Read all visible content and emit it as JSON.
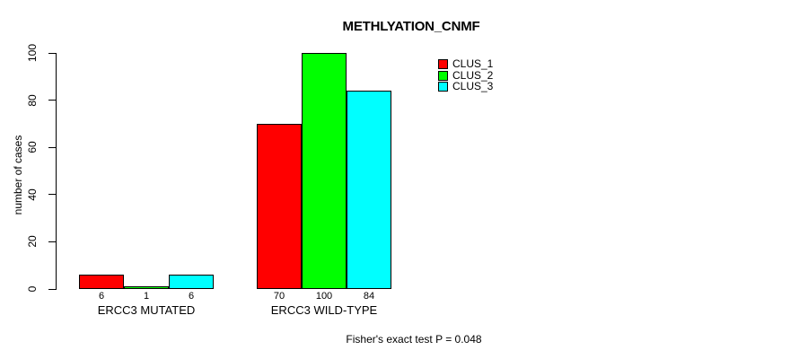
{
  "chart_data": {
    "type": "bar",
    "title": "METHLYATION_CNMF",
    "ylabel": "number of cases",
    "xlabel": "",
    "categories": [
      "ERCC3 MUTATED",
      "ERCC3 WILD-TYPE"
    ],
    "series": [
      {
        "name": "CLUS_1",
        "color": "#FF0000",
        "values": [
          6,
          70
        ]
      },
      {
        "name": "CLUS_2",
        "color": "#00FF00",
        "values": [
          1,
          100
        ]
      },
      {
        "name": "CLUS_3",
        "color": "#00FFFF",
        "values": [
          6,
          84
        ]
      }
    ],
    "ylim": [
      0,
      100
    ],
    "yticks": [
      0,
      20,
      40,
      60,
      80,
      100
    ],
    "grid": false,
    "legend_position": "top-right",
    "bar_value_labels": true,
    "annotation": "Fisher's exact test P = 0.048"
  }
}
